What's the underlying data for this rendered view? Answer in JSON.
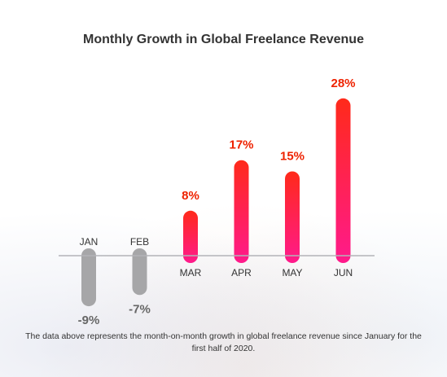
{
  "chart_data": {
    "type": "bar",
    "title": "Monthly Growth in Global Freelance Revenue",
    "categories": [
      "JAN",
      "FEB",
      "MAR",
      "APR",
      "MAY",
      "JUN"
    ],
    "values": [
      -9,
      -7,
      8,
      17,
      15,
      28
    ],
    "value_labels": [
      "-9%",
      "-7%",
      "8%",
      "17%",
      "15%",
      "28%"
    ],
    "ylim": [
      -9,
      28
    ],
    "xlabel": "",
    "ylabel": "",
    "grid": false,
    "legend": "none",
    "colors": {
      "positive_top": "#ff2a1a",
      "positive_bottom": "#ff1a8c",
      "negative": "#a6a6a8",
      "positive_label": "#ee2200",
      "negative_label": "#666666",
      "axis": "#b3b3b8"
    }
  },
  "footnote": "The data above represents the month-on-month growth in global freelance revenue since January for the first half of 2020."
}
